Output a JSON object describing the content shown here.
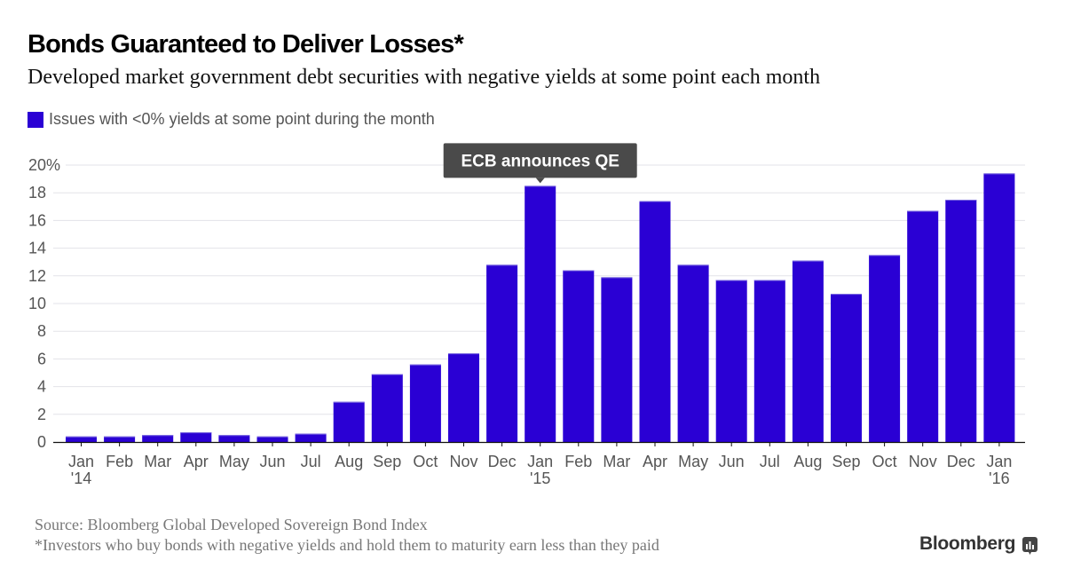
{
  "header": {
    "title": "Bonds Guaranteed to Deliver Losses*",
    "subtitle": "Developed market government debt securities with negative yields at some point each month"
  },
  "footer": {
    "source": "Source: Bloomberg Global Developed Sovereign Bond Index",
    "note": "*Investors who buy bonds with negative yields and hold them to maturity earn less than they paid",
    "brand": "Bloomberg"
  },
  "colors": {
    "bar": "#2a00d4",
    "annotation_bg": "#4a4a4a",
    "grid": "#e3e3e8"
  },
  "chart_data": {
    "type": "bar",
    "title": "Bonds Guaranteed to Deliver Losses*",
    "subtitle": "Developed market government debt securities with negative yields at some point each month",
    "xlabel": "",
    "ylabel": "",
    "ylim": [
      0,
      20
    ],
    "yticks": [
      0,
      2,
      4,
      6,
      8,
      10,
      12,
      14,
      16,
      18,
      20
    ],
    "ytick_labels": [
      "0",
      "2",
      "4",
      "6",
      "8",
      "10",
      "12",
      "14",
      "16",
      "18",
      "20%"
    ],
    "grid": true,
    "legend": {
      "position": "top-left",
      "entries": [
        "Issues with <0% yields at some point during the month"
      ]
    },
    "categories": [
      "Jan 2014",
      "Feb 2014",
      "Mar 2014",
      "Apr 2014",
      "May 2014",
      "Jun 2014",
      "Jul 2014",
      "Aug 2014",
      "Sep 2014",
      "Oct 2014",
      "Nov 2014",
      "Dec 2014",
      "Jan 2015",
      "Feb 2015",
      "Mar 2015",
      "Apr 2015",
      "May 2015",
      "Jun 2015",
      "Jul 2015",
      "Aug 2015",
      "Sep 2015",
      "Oct 2015",
      "Nov 2015",
      "Dec 2015",
      "Jan 2016"
    ],
    "xtick_labels": [
      [
        "Jan",
        "'14"
      ],
      [
        "Feb",
        ""
      ],
      [
        "Mar",
        ""
      ],
      [
        "Apr",
        ""
      ],
      [
        "May",
        ""
      ],
      [
        "Jun",
        ""
      ],
      [
        "Jul",
        ""
      ],
      [
        "Aug",
        ""
      ],
      [
        "Sep",
        ""
      ],
      [
        "Oct",
        ""
      ],
      [
        "Nov",
        ""
      ],
      [
        "Dec",
        ""
      ],
      [
        "Jan",
        "'15"
      ],
      [
        "Feb",
        ""
      ],
      [
        "Mar",
        ""
      ],
      [
        "Apr",
        ""
      ],
      [
        "May",
        ""
      ],
      [
        "Jun",
        ""
      ],
      [
        "Jul",
        ""
      ],
      [
        "Aug",
        ""
      ],
      [
        "Sep",
        ""
      ],
      [
        "Oct",
        ""
      ],
      [
        "Nov",
        ""
      ],
      [
        "Dec",
        ""
      ],
      [
        "Jan",
        "'16"
      ]
    ],
    "series": [
      {
        "name": "Issues with <0% yields at some point during the month",
        "values": [
          0.4,
          0.4,
          0.5,
          0.7,
          0.5,
          0.4,
          0.6,
          2.9,
          4.9,
          5.6,
          6.4,
          12.8,
          18.5,
          12.4,
          11.9,
          17.4,
          12.8,
          11.7,
          11.7,
          13.1,
          10.7,
          13.5,
          16.7,
          17.5,
          19.4
        ]
      }
    ],
    "annotations": [
      {
        "category": "Jan 2015",
        "text": "ECB announces QE"
      }
    ]
  }
}
